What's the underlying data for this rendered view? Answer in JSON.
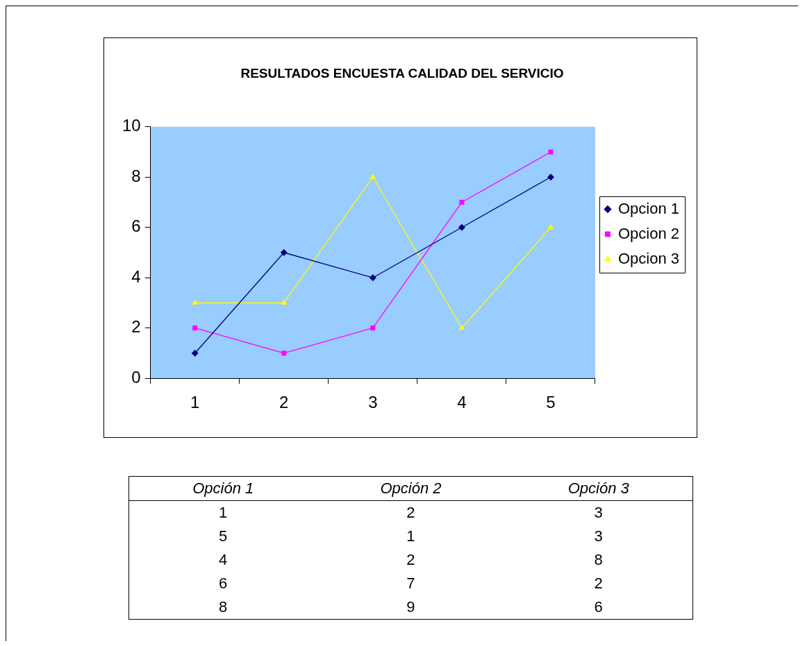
{
  "chart_data": [
    {
      "type": "line",
      "title": "RESULTADOS ENCUESTA CALIDAD DEL SERVICIO",
      "categories": [
        "1",
        "2",
        "3",
        "4",
        "5"
      ],
      "series": [
        {
          "name": "Opcion 1",
          "color": "#000080",
          "marker": "diamond",
          "values": [
            1,
            5,
            4,
            6,
            8
          ]
        },
        {
          "name": "Opcion 2",
          "color": "#ff00ff",
          "marker": "square",
          "values": [
            2,
            1,
            2,
            7,
            9
          ]
        },
        {
          "name": "Opcion 3",
          "color": "#ffff00",
          "marker": "triangle",
          "values": [
            3,
            3,
            8,
            2,
            6
          ]
        }
      ],
      "ylim": [
        0,
        10
      ],
      "yticks": [
        0,
        2,
        4,
        6,
        8,
        10
      ],
      "grid": false,
      "legend": "right"
    },
    {
      "type": "other",
      "annotations": [
        "Opción 1",
        "Opción 2",
        "Opción 3",
        "1",
        "2",
        "3",
        "5",
        "1",
        "3",
        "4",
        "2",
        "8",
        "6",
        "7",
        "2",
        "8",
        "9",
        "6"
      ]
    }
  ]
}
